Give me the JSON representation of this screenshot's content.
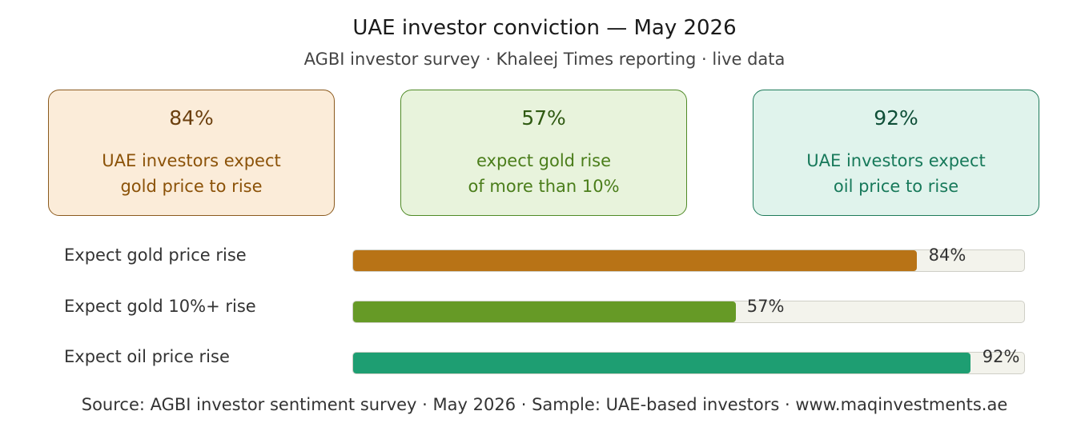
{
  "header": {
    "title": "UAE investor conviction — May 2026",
    "subtitle": "AGBI investor survey · Khaleej Times reporting · live data"
  },
  "cards": [
    {
      "value": "84%",
      "description": "UAE investors expect\ngold price to rise",
      "bg": "#fbecd9",
      "border": "#8b5a1e",
      "color_value": "#6b3f0e",
      "color_text": "#8b5208"
    },
    {
      "value": "57%",
      "description": "expect gold rise\nof more than 10%",
      "bg": "#e8f3dc",
      "border": "#4f8a26",
      "color_value": "#2f5a12",
      "color_text": "#4a7d1a"
    },
    {
      "value": "92%",
      "description": "UAE investors expect\noil price to rise",
      "bg": "#e0f3ec",
      "border": "#1e7a5a",
      "color_value": "#0f4f38",
      "color_text": "#17795a"
    }
  ],
  "chart_data": {
    "type": "bar",
    "orientation": "horizontal",
    "categories": [
      "Expect gold price rise",
      "Expect gold 10%+ rise",
      "Expect oil price rise"
    ],
    "values": [
      84,
      57,
      92
    ],
    "value_labels": [
      "84%",
      "57%",
      "92%"
    ],
    "colors": [
      "#b87316",
      "#669a26",
      "#1e9e72"
    ],
    "xlim": [
      0,
      100
    ],
    "grid": false,
    "legend": "none"
  },
  "footer": {
    "source": "Source: AGBI investor sentiment survey · May 2026 · Sample: UAE-based investors · www.maqinvestments.ae"
  }
}
